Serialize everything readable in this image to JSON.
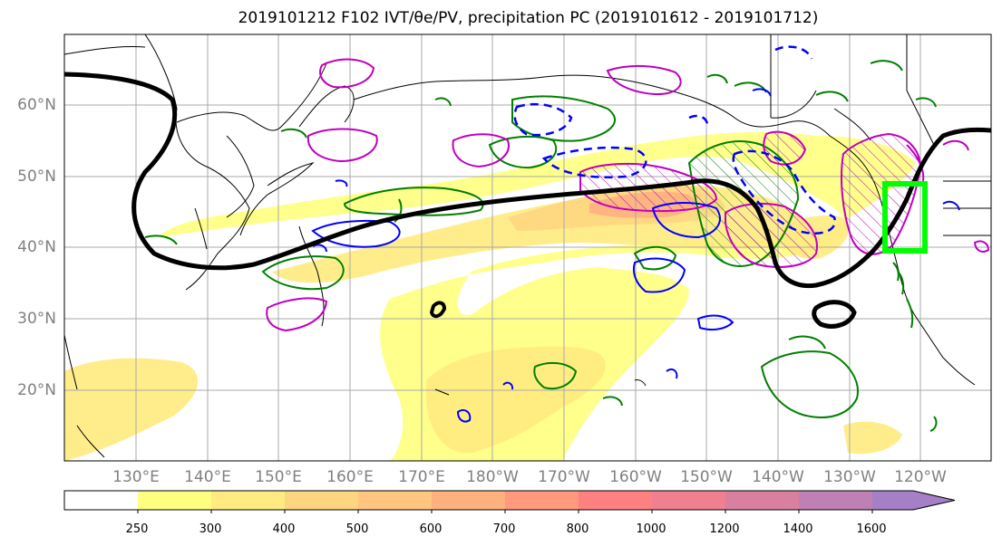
{
  "title": "2019101212 F102 IVT/θe/PV, precipitation PC (2019101612 - 2019101712)",
  "lat_labels": [
    "60°N",
    "50°N",
    "40°N",
    "30°N",
    "20°N"
  ],
  "lon_labels": [
    "130°E",
    "140°E",
    "150°E",
    "160°E",
    "170°E",
    "180°W",
    "170°W",
    "160°W",
    "150°W",
    "140°W",
    "130°W",
    "120°W"
  ],
  "colorbar": {
    "levels": [
      "250",
      "300",
      "400",
      "500",
      "600",
      "700",
      "800",
      "1000",
      "1200",
      "1400",
      "1600"
    ],
    "colors": [
      "#ffffff",
      "#ffff80",
      "#ffeb80",
      "#ffd680",
      "#ffc680",
      "#ffb07f",
      "#ff9a7f",
      "#ff8080",
      "#f0808f",
      "#d980a0",
      "#bf80b3",
      "#a680c6"
    ]
  },
  "legend_colors": {
    "jet": "#000000",
    "pv": "#0000ff",
    "theta": "#008000",
    "precip": "#bf00bf",
    "box": "#00ff00"
  }
}
